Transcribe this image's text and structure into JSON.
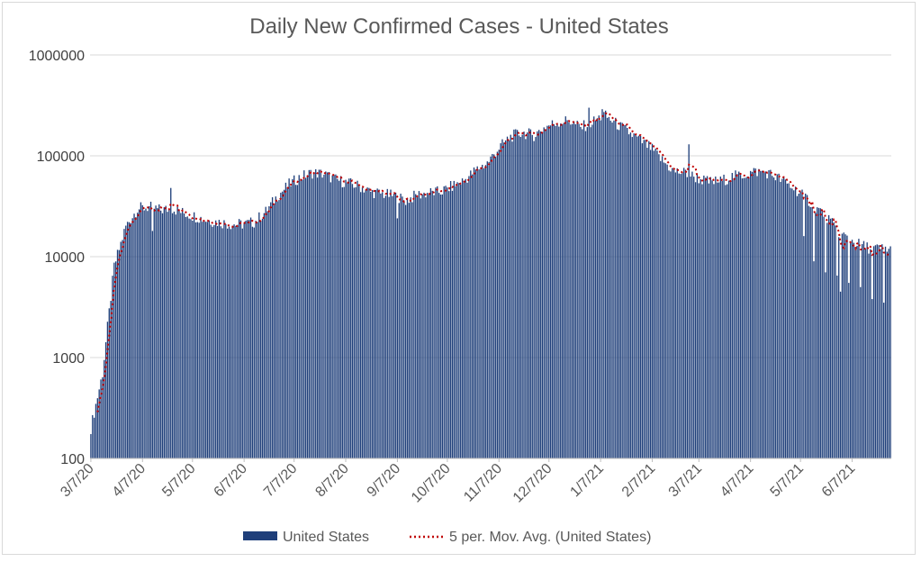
{
  "chart_data": {
    "type": "bar",
    "title": "Daily New Confirmed Cases - United States",
    "xlabel": "",
    "ylabel": "",
    "y_scale": "log",
    "ylim": [
      100,
      1000000
    ],
    "y_ticks": [
      "100",
      "1000",
      "10000",
      "100000",
      "1000000"
    ],
    "x_ticks": [
      "3/7/20",
      "4/7/20",
      "5/7/20",
      "6/7/20",
      "7/7/20",
      "8/7/20",
      "9/7/20",
      "10/7/20",
      "11/7/20",
      "12/7/20",
      "1/7/21",
      "2/7/21",
      "3/7/21",
      "4/7/21",
      "5/7/21",
      "6/7/21"
    ],
    "date_range": [
      "2020-03-07",
      "2021-06-30"
    ],
    "grid": true,
    "legend_position": "bottom",
    "series": [
      {
        "name": "United States",
        "type": "bar",
        "color": "#1f3f7a",
        "values_note": "daily values approximated at weekly resolution",
        "weekly_points": [
          [
            "2020-03-07",
            200
          ],
          [
            "2020-03-14",
            700
          ],
          [
            "2020-03-21",
            8000
          ],
          [
            "2020-03-28",
            20000
          ],
          [
            "2020-04-04",
            30000
          ],
          [
            "2020-04-11",
            31000
          ],
          [
            "2020-04-18",
            29000
          ],
          [
            "2020-04-25",
            30000
          ],
          [
            "2020-05-02",
            27000
          ],
          [
            "2020-05-09",
            25000
          ],
          [
            "2020-05-16",
            23000
          ],
          [
            "2020-05-23",
            22000
          ],
          [
            "2020-05-30",
            21000
          ],
          [
            "2020-06-06",
            21000
          ],
          [
            "2020-06-13",
            22000
          ],
          [
            "2020-06-20",
            28000
          ],
          [
            "2020-06-27",
            40000
          ],
          [
            "2020-07-04",
            52000
          ],
          [
            "2020-07-11",
            62000
          ],
          [
            "2020-07-18",
            68000
          ],
          [
            "2020-07-25",
            66000
          ],
          [
            "2020-08-01",
            58000
          ],
          [
            "2020-08-08",
            54000
          ],
          [
            "2020-08-15",
            50000
          ],
          [
            "2020-08-22",
            44000
          ],
          [
            "2020-08-29",
            42000
          ],
          [
            "2020-09-05",
            40000
          ],
          [
            "2020-09-12",
            36000
          ],
          [
            "2020-09-19",
            41000
          ],
          [
            "2020-09-26",
            43000
          ],
          [
            "2020-10-03",
            44000
          ],
          [
            "2020-10-10",
            50000
          ],
          [
            "2020-10-17",
            57000
          ],
          [
            "2020-10-24",
            72000
          ],
          [
            "2020-10-31",
            85000
          ],
          [
            "2020-11-07",
            120000
          ],
          [
            "2020-11-14",
            155000
          ],
          [
            "2020-11-21",
            170000
          ],
          [
            "2020-11-28",
            160000
          ],
          [
            "2020-12-05",
            195000
          ],
          [
            "2020-12-12",
            215000
          ],
          [
            "2020-12-19",
            225000
          ],
          [
            "2020-12-26",
            190000
          ],
          [
            "2021-01-02",
            215000
          ],
          [
            "2021-01-09",
            255000
          ],
          [
            "2021-01-16",
            210000
          ],
          [
            "2021-01-23",
            175000
          ],
          [
            "2021-01-30",
            145000
          ],
          [
            "2021-02-06",
            120000
          ],
          [
            "2021-02-13",
            90000
          ],
          [
            "2021-02-20",
            70000
          ],
          [
            "2021-02-27",
            68000
          ],
          [
            "2021-03-06",
            60000
          ],
          [
            "2021-03-13",
            55000
          ],
          [
            "2021-03-20",
            56000
          ],
          [
            "2021-03-27",
            62000
          ],
          [
            "2021-04-03",
            65000
          ],
          [
            "2021-04-10",
            70000
          ],
          [
            "2021-04-17",
            68000
          ],
          [
            "2021-04-24",
            60000
          ],
          [
            "2021-05-01",
            50000
          ],
          [
            "2021-05-08",
            42000
          ],
          [
            "2021-05-15",
            32000
          ],
          [
            "2021-05-22",
            26000
          ],
          [
            "2021-05-29",
            18000
          ],
          [
            "2021-06-05",
            15000
          ],
          [
            "2021-06-12",
            13000
          ],
          [
            "2021-06-19",
            12000
          ],
          [
            "2021-06-26",
            12000
          ],
          [
            "2021-06-30",
            12000
          ]
        ],
        "spikes": [
          [
            "2020-04-24",
            48000
          ],
          [
            "2020-12-31",
            300000
          ],
          [
            "2021-01-08",
            290000
          ],
          [
            "2021-03-01",
            130000
          ]
        ],
        "dips": [
          [
            "2020-04-13",
            18000
          ],
          [
            "2020-09-07",
            24000
          ],
          [
            "2021-05-09",
            16000
          ],
          [
            "2021-05-15",
            9000
          ],
          [
            "2021-05-22",
            7000
          ],
          [
            "2021-05-29",
            6500
          ],
          [
            "2021-05-31",
            4500
          ],
          [
            "2021-06-05",
            5500
          ],
          [
            "2021-06-12",
            5000
          ],
          [
            "2021-06-19",
            3800
          ],
          [
            "2021-06-26",
            3500
          ]
        ]
      },
      {
        "name": "5 per. Mov. Avg. (United States)",
        "type": "line",
        "style": "dotted",
        "color": "#c00000"
      }
    ]
  }
}
